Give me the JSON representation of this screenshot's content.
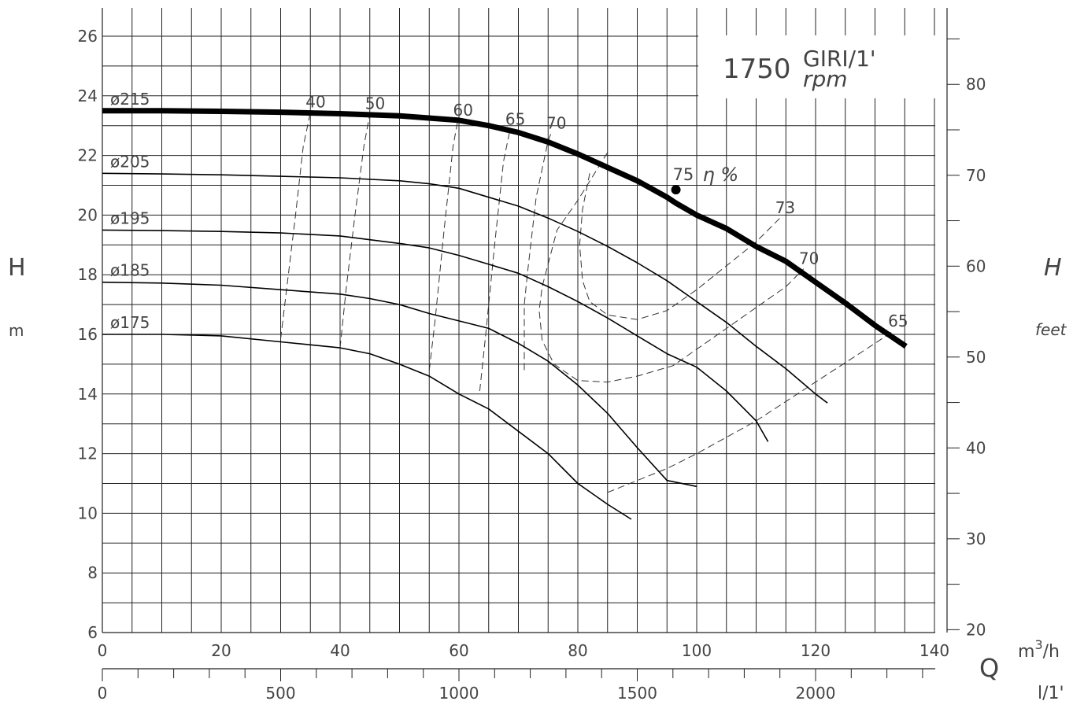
{
  "chart_data": {
    "type": "line",
    "speed": {
      "value": "1750",
      "unit_top": "GIRI/1'",
      "unit_bottom": "rpm"
    },
    "axes": {
      "y_left": {
        "label": "H",
        "unit": "m",
        "range": [
          6,
          26.5
        ],
        "ticks": [
          "6",
          "8",
          "10",
          "12",
          "14",
          "16",
          "18",
          "20",
          "22",
          "24",
          "26"
        ]
      },
      "y_right": {
        "label": "H",
        "unit": "feet",
        "ticks": [
          "20",
          "30",
          "40",
          "50",
          "60",
          "70",
          "80"
        ],
        "tick_values": [
          20,
          30,
          40,
          50,
          60,
          70,
          80
        ]
      },
      "x_main": {
        "unit": "m3/h",
        "unit_sup": "3",
        "range": [
          0,
          140
        ],
        "ticks": [
          "0",
          "20",
          "40",
          "60",
          "80",
          "100",
          "120",
          "140"
        ]
      },
      "x_secondary": {
        "label": "Q",
        "unit": "l/1'",
        "ticks": [
          "0",
          "500",
          "1000",
          "1500",
          "2000"
        ],
        "tick_values": [
          0,
          500,
          1000,
          1500,
          2000
        ]
      }
    },
    "grid": true,
    "series": [
      {
        "name": "ø215",
        "highlight": true,
        "x": [
          0,
          10,
          20,
          30,
          40,
          50,
          60,
          65,
          70,
          75,
          80,
          85,
          90,
          95,
          96.5,
          100,
          105,
          110,
          115,
          120,
          125,
          130,
          135.2
        ],
        "y": [
          23.5,
          23.5,
          23.48,
          23.45,
          23.4,
          23.33,
          23.18,
          23.0,
          22.77,
          22.45,
          22.05,
          21.6,
          21.15,
          20.6,
          20.4,
          20.0,
          19.55,
          18.95,
          18.45,
          17.75,
          17.05,
          16.3,
          15.6
        ]
      },
      {
        "name": "ø205",
        "x": [
          0,
          10,
          20,
          30,
          40,
          50,
          55,
          60,
          65,
          70,
          75,
          80,
          85,
          90,
          95,
          100,
          105,
          110,
          115,
          120,
          122
        ],
        "y": [
          21.4,
          21.38,
          21.35,
          21.3,
          21.25,
          21.15,
          21.05,
          20.9,
          20.6,
          20.3,
          19.9,
          19.45,
          18.95,
          18.4,
          17.8,
          17.1,
          16.4,
          15.6,
          14.85,
          14.0,
          13.7
        ]
      },
      {
        "name": "ø195",
        "x": [
          0,
          10,
          20,
          30,
          40,
          50,
          55,
          60,
          65,
          70,
          75,
          80,
          85,
          90,
          95,
          100,
          105,
          110,
          112
        ],
        "y": [
          19.5,
          19.48,
          19.45,
          19.4,
          19.3,
          19.05,
          18.9,
          18.65,
          18.35,
          18.05,
          17.6,
          17.1,
          16.55,
          15.95,
          15.35,
          14.9,
          14.1,
          13.1,
          12.4
        ]
      },
      {
        "name": "ø185",
        "x": [
          0,
          10,
          20,
          30,
          40,
          45,
          50,
          55,
          60,
          65,
          70,
          75,
          80,
          85,
          90,
          95,
          100
        ],
        "y": [
          17.75,
          17.72,
          17.65,
          17.5,
          17.35,
          17.2,
          17.0,
          16.7,
          16.45,
          16.2,
          15.7,
          15.1,
          14.3,
          13.35,
          12.2,
          11.1,
          10.9
        ]
      },
      {
        "name": "ø175",
        "x": [
          0,
          10,
          20,
          30,
          40,
          45,
          50,
          55,
          60,
          65,
          70,
          75,
          80,
          85,
          89
        ],
        "y": [
          16.0,
          16.0,
          15.95,
          15.75,
          15.55,
          15.35,
          15.0,
          14.6,
          14.0,
          13.5,
          12.75,
          12.0,
          11.0,
          10.3,
          9.8
        ]
      }
    ],
    "efficiency_label": "η %",
    "efficiency_curves": [
      {
        "label": "40",
        "x": [
          30,
          31,
          32.5,
          33.8,
          35
        ],
        "y": [
          15.85,
          17.5,
          20.0,
          22.3,
          23.45
        ]
      },
      {
        "label": "50",
        "x": [
          40,
          41,
          42.5,
          44,
          45
        ],
        "y": [
          15.55,
          17.5,
          20.0,
          22.3,
          23.4
        ]
      },
      {
        "label": "60",
        "x": [
          55,
          56,
          57.5,
          59,
          59.8
        ],
        "y": [
          14.8,
          16.5,
          19.5,
          22.3,
          23.18
        ]
      },
      {
        "label": "65",
        "x": [
          63.5,
          64.5,
          66,
          67.5,
          68.6
        ],
        "y": [
          14.1,
          16.0,
          19.0,
          21.8,
          22.87
        ]
      },
      {
        "label": "70",
        "x": [
          71,
          71,
          71.5,
          73,
          75,
          75.5
        ],
        "y": [
          14.8,
          17.0,
          18.0,
          20.6,
          22.5,
          22.74
        ]
      },
      {
        "label": "73",
        "x": [
          82,
          80.8,
          80.3,
          80.8,
          82,
          85,
          90,
          95,
          100,
          105,
          110,
          114
        ],
        "y": [
          21.4,
          20.2,
          19.0,
          17.8,
          17.1,
          16.65,
          16.5,
          16.8,
          17.5,
          18.3,
          19.1,
          19.9
        ]
      },
      {
        "label": "70",
        "x": [
          85,
          80,
          76.5,
          74,
          73.5,
          74,
          76,
          80,
          85,
          90,
          96,
          100,
          105,
          110,
          115,
          118
        ],
        "y": [
          22.1,
          20.5,
          19.5,
          17.6,
          16.8,
          15.8,
          15.0,
          14.45,
          14.4,
          14.6,
          14.95,
          15.5,
          16.2,
          16.9,
          17.6,
          18.2
        ]
      },
      {
        "label": "65",
        "x": [
          85,
          90,
          95,
          100,
          105,
          110,
          115,
          120,
          125,
          130,
          133
        ],
        "y": [
          10.7,
          11.1,
          11.5,
          12.0,
          12.55,
          13.1,
          13.75,
          14.4,
          15.05,
          15.7,
          16.1
        ]
      }
    ],
    "efficiency_point": {
      "label": "75",
      "x": 96.5,
      "y": 20.85
    }
  }
}
